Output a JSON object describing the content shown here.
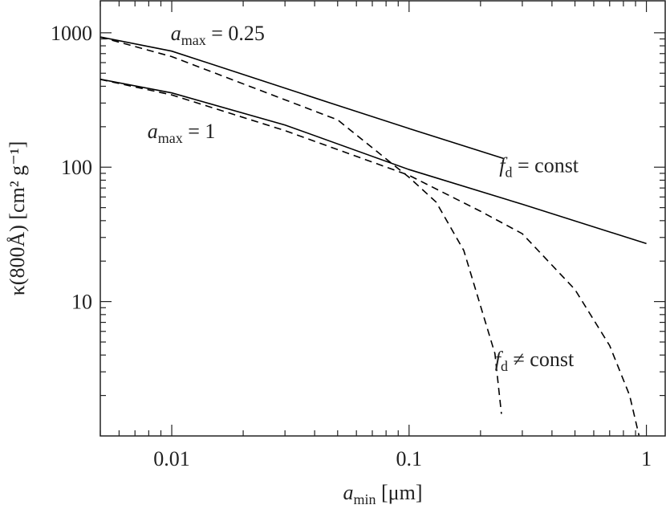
{
  "chart_data": {
    "type": "line",
    "xlabel": {
      "base": "a",
      "sub": "min",
      "text": " [μm]"
    },
    "ylabel": "κ(800Å) [cm² g⁻¹]",
    "xscale": "log",
    "yscale": "log",
    "xlim": [
      0.005,
      1.2
    ],
    "ylim": [
      1,
      1730
    ],
    "xticks": [
      0.01,
      0.1,
      1
    ],
    "yticks": [
      10,
      100,
      1000
    ],
    "xminorticks": [
      0.005,
      0.006,
      0.007,
      0.008,
      0.009,
      0.02,
      0.03,
      0.04,
      0.05,
      0.06,
      0.07,
      0.08,
      0.09,
      0.2,
      0.3,
      0.4,
      0.5,
      0.6,
      0.7,
      0.8,
      0.9
    ],
    "yminorticks": [
      2,
      3,
      4,
      5,
      6,
      7,
      8,
      9,
      20,
      30,
      40,
      50,
      60,
      70,
      80,
      90,
      200,
      300,
      400,
      500,
      600,
      700,
      800,
      900
    ],
    "series": [
      {
        "color": "#000000",
        "dashed": false,
        "x": [
          0.005,
          0.01,
          0.02,
          0.05,
          0.1,
          0.25
        ],
        "values": [
          930,
          730,
          490,
          288,
          194,
          116
        ]
      },
      {
        "color": "#000000",
        "dashed": true,
        "x": [
          0.005,
          0.01,
          0.05,
          0.1,
          0.13,
          0.17,
          0.2,
          0.23,
          0.245
        ],
        "values": [
          930,
          665,
          225,
          84,
          55,
          24,
          9.3,
          4.1,
          1.46
        ]
      },
      {
        "color": "#000000",
        "dashed": false,
        "x": [
          0.005,
          0.01,
          0.03,
          0.1,
          0.3,
          1
        ],
        "values": [
          451,
          357,
          206,
          96,
          53,
          27
        ]
      },
      {
        "color": "#000000",
        "dashed": true,
        "x": [
          0.005,
          0.01,
          0.03,
          0.1,
          0.2,
          0.3,
          0.5,
          0.7,
          0.85,
          0.93
        ],
        "values": [
          450,
          345,
          187,
          87,
          47,
          32,
          12.3,
          4.7,
          2.0,
          1.01
        ]
      }
    ],
    "annotations": [
      {
        "base": "a",
        "sub": "max",
        "text": " = 0.25",
        "at": [
          0.0099,
          880
        ]
      },
      {
        "base": "a",
        "sub": "max",
        "text": " = 1",
        "at": [
          0.0079,
          165
        ]
      },
      {
        "base": "f",
        "sub": "d",
        "text": " = const",
        "at": [
          0.24,
          92
        ]
      },
      {
        "base": "f",
        "sub": "d",
        "text": " ≠ const",
        "at": [
          0.23,
          3.3
        ]
      }
    ]
  }
}
